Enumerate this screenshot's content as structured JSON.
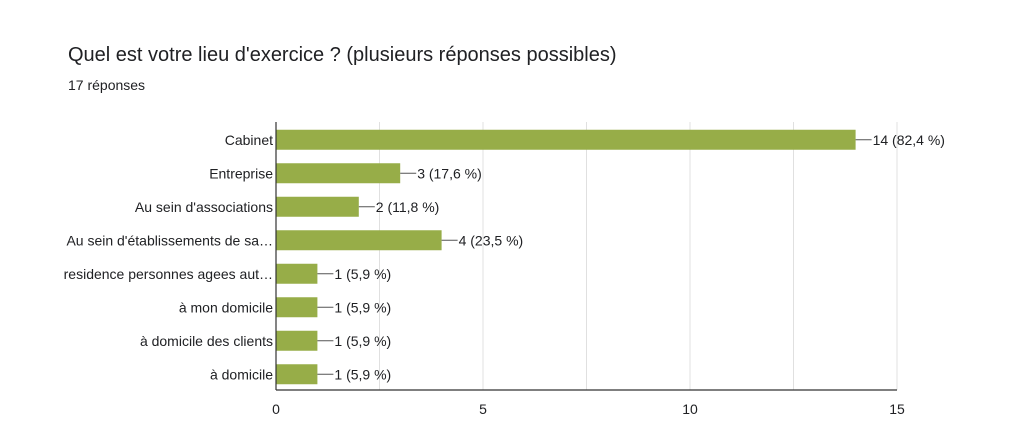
{
  "title": "Quel est votre lieu d'exercice ? (plusieurs réponses possibles)",
  "subtitle": "17 réponses",
  "colors": {
    "bar": "#97ad48",
    "grid": "#e0e0e0",
    "axis": "#333333",
    "text": "#202124"
  },
  "chart_data": {
    "type": "bar",
    "orientation": "horizontal",
    "categories": [
      "Cabinet",
      "Entreprise",
      "Au sein d'associations",
      "Au sein d'établissements de sa…",
      "residence personnes agees aut…",
      "à mon domicile",
      "à domicile des clients",
      "à domicile"
    ],
    "values": [
      14,
      3,
      2,
      4,
      1,
      1,
      1,
      1
    ],
    "data_labels": [
      "14 (82,4 %)",
      "3 (17,6 %)",
      "2 (11,8 %)",
      "4 (23,5 %)",
      "1 (5,9 %)",
      "1 (5,9 %)",
      "1 (5,9 %)",
      "1 (5,9 %)"
    ],
    "x_ticks": [
      0,
      5,
      10,
      15
    ],
    "xlim": [
      0,
      15
    ],
    "grid": true,
    "legend": "none"
  }
}
